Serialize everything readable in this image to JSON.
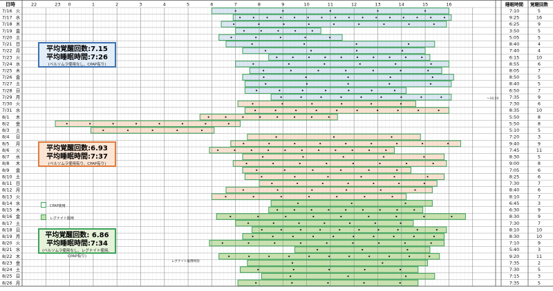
{
  "chart_data": {
    "type": "table",
    "header": {
      "date_col": "日時",
      "hours": [
        "22",
        "23",
        "0",
        "1",
        "2",
        "3",
        "4",
        "5",
        "6",
        "7",
        "8",
        "9",
        "10",
        "11",
        "12",
        "13",
        "14",
        "15",
        "16"
      ],
      "sleep_time_col": "睡眠時間",
      "wake_count_col": "覚醒回数"
    },
    "rows": [
      {
        "date": "7/16",
        "dow": "火",
        "sleep_time": "7:10",
        "wakes": "5",
        "start": 6.0,
        "end": 16.0,
        "phase": "blue"
      },
      {
        "date": "7/17",
        "dow": "水",
        "sleep_time": "9:25",
        "wakes": "16",
        "start": 6.9,
        "end": 16.1,
        "phase": "blue"
      },
      {
        "date": "7/18",
        "dow": "木",
        "sleep_time": "6:25",
        "wakes": "9",
        "start": 6.4,
        "end": 15.9,
        "phase": "blue"
      },
      {
        "date": "7/19",
        "dow": "金",
        "sleep_time": "3:50",
        "wakes": "5",
        "start": 7.0,
        "end": 10.6,
        "phase": "blue"
      },
      {
        "date": "7/20",
        "dow": "土",
        "sleep_time": "5:05",
        "wakes": "5",
        "start": 6.3,
        "end": 11.5,
        "phase": "blue"
      },
      {
        "date": "7/21",
        "dow": "日",
        "sleep_time": "8:40",
        "wakes": "4",
        "start": 6.6,
        "end": 15.4,
        "phase": "blue"
      },
      {
        "date": "7/22",
        "dow": "月",
        "sleep_time": "7:40",
        "wakes": "4",
        "start": 7.3,
        "end": 15.0,
        "phase": "blue"
      },
      {
        "date": "7/23",
        "dow": "火",
        "sleep_time": "6:15",
        "wakes": "10",
        "start": 8.4,
        "end": 15.2,
        "phase": "blue"
      },
      {
        "date": "7/24",
        "dow": "水",
        "sleep_time": "8:55",
        "wakes": "6",
        "start": 7.0,
        "end": 16.0,
        "phase": "blue"
      },
      {
        "date": "7/25",
        "dow": "木",
        "sleep_time": "8:05",
        "wakes": "7",
        "start": 7.6,
        "end": 15.7,
        "phase": "blue"
      },
      {
        "date": "7/26",
        "dow": "金",
        "sleep_time": "8:50",
        "wakes": "5",
        "start": 7.3,
        "end": 16.2,
        "phase": "blue"
      },
      {
        "date": "7/27",
        "dow": "土",
        "sleep_time": "8:40",
        "wakes": "5",
        "start": 7.4,
        "end": 16.1,
        "phase": "blue"
      },
      {
        "date": "7/28",
        "dow": "日",
        "sleep_time": "6:50",
        "wakes": "7",
        "start": 7.4,
        "end": 14.2,
        "phase": "blue"
      },
      {
        "date": "7/29",
        "dow": "月",
        "sleep_time": "7:35",
        "wakes": "9",
        "start": 8.5,
        "end": 16.1,
        "phase": "blue"
      },
      {
        "date": "7/30",
        "dow": "火",
        "sleep_time": "7:30",
        "wakes": "6",
        "start": 7.1,
        "end": 14.6,
        "phase": "orange"
      },
      {
        "date": "7/31",
        "dow": "水",
        "sleep_time": "8:35",
        "wakes": "10",
        "start": 7.4,
        "end": 16.0,
        "phase": "orange"
      },
      {
        "date": "8/1",
        "dow": "木",
        "sleep_time": "5:50",
        "wakes": "8",
        "start": 5.5,
        "end": 11.3,
        "phase": "orange"
      },
      {
        "date": "8/2",
        "dow": "金",
        "sleep_time": "5:50",
        "wakes": "8",
        "start": -0.6,
        "end": 7.2,
        "phase": "orange"
      },
      {
        "date": "8/3",
        "dow": "土",
        "sleep_time": "5:10",
        "wakes": "5",
        "start": 0.9,
        "end": 6.1,
        "phase": "orange"
      },
      {
        "date": "8/4",
        "dow": "日",
        "sleep_time": "7:20",
        "wakes": "3",
        "start": 7.5,
        "end": 14.8,
        "phase": "orange"
      },
      {
        "date": "8/5",
        "dow": "月",
        "sleep_time": "9:40",
        "wakes": "9",
        "start": 6.8,
        "end": 16.5,
        "phase": "orange"
      },
      {
        "date": "8/6",
        "dow": "火",
        "sleep_time": "7:45",
        "wakes": "11",
        "start": 5.9,
        "end": 13.7,
        "phase": "orange"
      },
      {
        "date": "8/7",
        "dow": "水",
        "sleep_time": "8:30",
        "wakes": "5",
        "start": 7.3,
        "end": 15.8,
        "phase": "orange"
      },
      {
        "date": "8/8",
        "dow": "木",
        "sleep_time": "9:00",
        "wakes": "8",
        "start": 6.9,
        "end": 15.9,
        "phase": "orange"
      },
      {
        "date": "8/9",
        "dow": "金",
        "sleep_time": "7:05",
        "wakes": "6",
        "start": 7.3,
        "end": 14.4,
        "phase": "orange"
      },
      {
        "date": "8/10",
        "dow": "土",
        "sleep_time": "8:25",
        "wakes": "6",
        "start": 7.4,
        "end": 15.8,
        "phase": "orange"
      },
      {
        "date": "8/11",
        "dow": "日",
        "sleep_time": "7:30",
        "wakes": "7",
        "start": 8.0,
        "end": 15.5,
        "phase": "orange"
      },
      {
        "date": "8/12",
        "dow": "月",
        "sleep_time": "8:40",
        "wakes": "6",
        "start": 6.6,
        "end": 15.3,
        "phase": "orange"
      },
      {
        "date": "8/13",
        "dow": "火",
        "sleep_time": "8:10",
        "wakes": "7",
        "start": 6.0,
        "end": 14.2,
        "phase": "orange"
      },
      {
        "date": "8/14",
        "dow": "水",
        "sleep_time": "6:45",
        "wakes": "3",
        "start": 8.5,
        "end": 15.3,
        "phase": "green"
      },
      {
        "date": "8/15",
        "dow": "木",
        "sleep_time": "6:30",
        "wakes": "9",
        "start": 8.4,
        "end": 14.9,
        "phase": "green"
      },
      {
        "date": "8/16",
        "dow": "金",
        "sleep_time": "8:30",
        "wakes": "9",
        "start": 6.2,
        "end": 16.7,
        "phase": "green"
      },
      {
        "date": "8/17",
        "dow": "土",
        "sleep_time": "7:30",
        "wakes": "7",
        "start": 7.0,
        "end": 14.5,
        "phase": "green"
      },
      {
        "date": "8/18",
        "dow": "日",
        "sleep_time": "8:10",
        "wakes": "10",
        "start": 7.7,
        "end": 15.9,
        "phase": "green"
      },
      {
        "date": "8/19",
        "dow": "月",
        "sleep_time": "8:30",
        "wakes": "10",
        "start": 7.3,
        "end": 15.8,
        "phase": "green"
      },
      {
        "date": "8/20",
        "dow": "火",
        "sleep_time": "7:10",
        "wakes": "9",
        "start": 5.9,
        "end": 15.8,
        "phase": "green"
      },
      {
        "date": "8/21",
        "dow": "水",
        "sleep_time": "5:40",
        "wakes": "3",
        "start": 9.5,
        "end": 15.2,
        "phase": "green"
      },
      {
        "date": "8/22",
        "dow": "木",
        "sleep_time": "9:20",
        "wakes": "11",
        "start": 6.3,
        "end": 15.6,
        "phase": "green"
      },
      {
        "date": "8/23",
        "dow": "金",
        "sleep_time": "7:35",
        "wakes": "2",
        "start": 7.5,
        "end": 15.1,
        "phase": "green"
      },
      {
        "date": "8/24",
        "dow": "土",
        "sleep_time": "7:30",
        "wakes": "5",
        "start": 7.2,
        "end": 14.7,
        "phase": "green"
      },
      {
        "date": "8/25",
        "dow": "日",
        "sleep_time": "7:15",
        "wakes": "3",
        "start": 8.1,
        "end": 15.4,
        "phase": "green"
      },
      {
        "date": "8/26",
        "dow": "月",
        "sleep_time": "7:35",
        "wakes": "5",
        "start": 7.1,
        "end": 14.7,
        "phase": "green"
      }
    ]
  },
  "summaries": [
    {
      "line1": "平均覚醒回数:7.15",
      "line2": "平均睡眠時間:7:26",
      "line3": "(ベルソムラ使用なし、CPAP有り)"
    },
    {
      "line1": "平均覚醒回数:6.93",
      "line2": "平均睡眠時間:7:37",
      "line3": "(ベルソムラ使用有り、CPAP有り)"
    },
    {
      "line1": "平均覚醒回数: 6.86",
      "line2": "平均睡眠時間:7:34",
      "line3": "(ベルソムラ使用なし、レグナイト使用、CPAP有り)"
    }
  ],
  "legend": {
    "cpap": "CPAP使用",
    "regnite": "レグナイト服用"
  },
  "annotations": {
    "regnite_note": "レグナイト服用時刻",
    "time_note": "〜16:20"
  },
  "colors": {
    "blue_band": "#dbe7f3",
    "orange_band": "#f9e0cf",
    "green_band": "#c9e1ae",
    "bar_outline": "#3aa35a",
    "box_blue": "#3b6fb0",
    "box_orange": "#e07b39",
    "box_green": "#3aa35a",
    "grid": "#c9c9c9"
  }
}
